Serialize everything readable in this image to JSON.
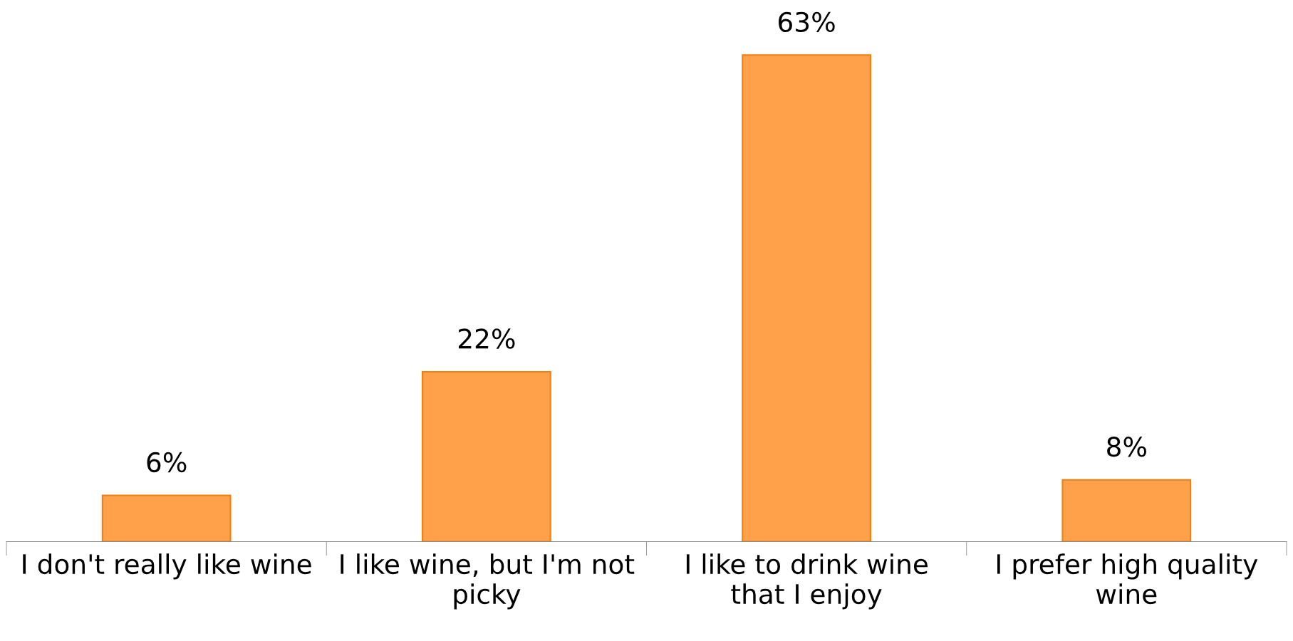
{
  "chart_data": {
    "type": "bar",
    "categories": [
      "I don't really like wine",
      "I like wine, but I'm not picky",
      "I like to drink wine that I enjoy",
      "I prefer high quality wine"
    ],
    "values": [
      6,
      22,
      63,
      8
    ],
    "color": "#ffa04a",
    "value_labels": [
      "6%",
      "22%",
      "63%",
      "8%"
    ],
    "grid": false,
    "legend": false,
    "tick_labels": "x"
  }
}
